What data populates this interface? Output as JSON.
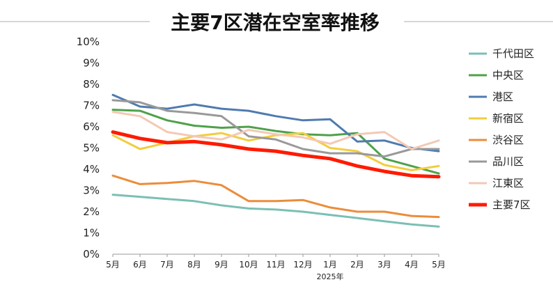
{
  "chart_data": {
    "type": "line",
    "title": "主要7区潜在空室率推移",
    "categories": [
      "5月",
      "6月",
      "7月",
      "8月",
      "9月",
      "10月",
      "11月",
      "12月",
      "1月",
      "2月",
      "3月",
      "4月",
      "5月"
    ],
    "x_group_label": "2025年",
    "y_ticks": [
      "0%",
      "1%",
      "2%",
      "3%",
      "4%",
      "5%",
      "6%",
      "7%",
      "8%",
      "9%",
      "10%"
    ],
    "ylim": [
      0,
      10
    ],
    "grid": false,
    "legend_position": "right",
    "series": [
      {
        "name": "千代田区",
        "color": "#7bbfb5",
        "width": 3,
        "values": [
          2.8,
          2.7,
          2.6,
          2.5,
          2.3,
          2.15,
          2.1,
          2.0,
          1.85,
          1.7,
          1.55,
          1.4,
          1.3
        ]
      },
      {
        "name": "中央区",
        "color": "#4ea14a",
        "width": 3,
        "values": [
          6.8,
          6.75,
          6.3,
          6.05,
          5.95,
          6.0,
          5.8,
          5.65,
          5.6,
          5.7,
          4.5,
          4.15,
          3.8
        ]
      },
      {
        "name": "港区",
        "color": "#4f7bb0",
        "width": 3,
        "values": [
          7.5,
          6.95,
          6.85,
          7.05,
          6.85,
          6.75,
          6.5,
          6.3,
          6.35,
          5.3,
          5.35,
          5.0,
          4.85
        ]
      },
      {
        "name": "新宿区",
        "color": "#f2cd3d",
        "width": 3,
        "values": [
          5.6,
          4.95,
          5.25,
          5.55,
          5.7,
          5.35,
          5.6,
          5.7,
          5.0,
          4.85,
          4.2,
          3.95,
          4.15
        ]
      },
      {
        "name": "渋谷区",
        "color": "#ec8c3a",
        "width": 3,
        "values": [
          3.7,
          3.3,
          3.35,
          3.45,
          3.25,
          2.5,
          2.5,
          2.55,
          2.2,
          2.0,
          2.0,
          1.8,
          1.75
        ]
      },
      {
        "name": "品川区",
        "color": "#999999",
        "width": 3,
        "values": [
          7.25,
          7.15,
          6.75,
          6.65,
          6.5,
          5.55,
          5.4,
          4.95,
          4.75,
          4.75,
          4.6,
          4.95,
          4.95
        ]
      },
      {
        "name": "江東区",
        "color": "#f3c9b4",
        "width": 3,
        "values": [
          6.7,
          6.5,
          5.75,
          5.55,
          5.4,
          5.85,
          5.65,
          5.5,
          5.2,
          5.65,
          5.75,
          4.95,
          5.35
        ]
      },
      {
        "name": "主要7区",
        "color": "#ff1a00",
        "width": 5,
        "values": [
          5.75,
          5.45,
          5.25,
          5.3,
          5.15,
          4.95,
          4.85,
          4.65,
          4.5,
          4.15,
          3.9,
          3.7,
          3.65
        ]
      }
    ]
  }
}
